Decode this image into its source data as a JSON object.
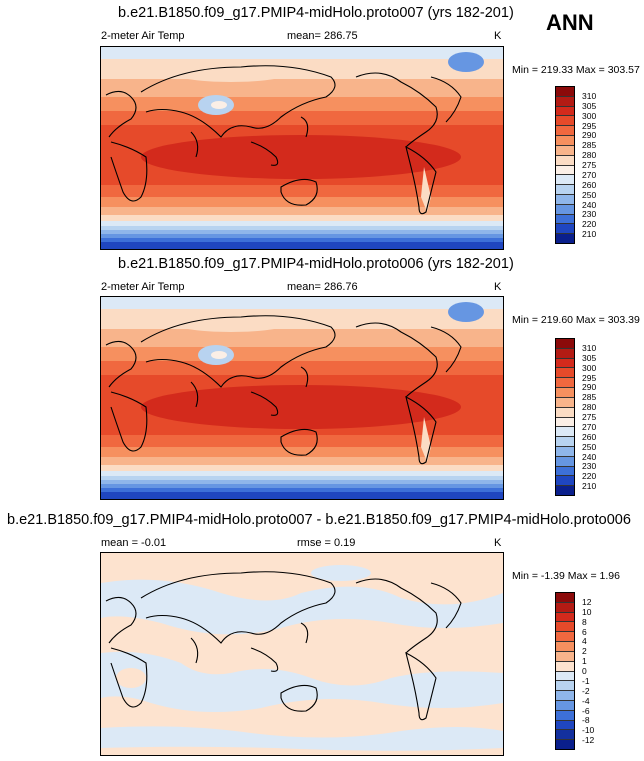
{
  "season": "ANN",
  "panels": [
    {
      "title": "b.e21.B1850.f09_g17.PMIP4-midHolo.proto007 (yrs 182-201)",
      "left_label": "2-meter Air Temp",
      "center_label": "mean= 286.75",
      "units": "K",
      "minmax": "Min = 219.33 Max = 303.57",
      "colorbar": {
        "levels": [
          "310",
          "305",
          "300",
          "295",
          "290",
          "285",
          "280",
          "275",
          "270",
          "260",
          "250",
          "240",
          "230",
          "220",
          "210"
        ],
        "colors": [
          "#8b0a0a",
          "#b31b14",
          "#d32a1c",
          "#e64a2a",
          "#f0683f",
          "#f6905f",
          "#f8b48b",
          "#fbdcc4",
          "#fbefe6",
          "#dce9f6",
          "#b8d3f0",
          "#8fb6ea",
          "#6696e2",
          "#3d70d8",
          "#1f46c0",
          "#0a1f8c"
        ]
      }
    },
    {
      "title": "b.e21.B1850.f09_g17.PMIP4-midHolo.proto006 (yrs 182-201)",
      "left_label": "2-meter Air Temp",
      "center_label": "mean= 286.76",
      "units": "K",
      "minmax": "Min = 219.60 Max = 303.39",
      "colorbar": {
        "levels": [
          "310",
          "305",
          "300",
          "295",
          "290",
          "285",
          "280",
          "275",
          "270",
          "260",
          "250",
          "240",
          "230",
          "220",
          "210"
        ],
        "colors": [
          "#8b0a0a",
          "#b31b14",
          "#d32a1c",
          "#e64a2a",
          "#f0683f",
          "#f6905f",
          "#f8b48b",
          "#fbdcc4",
          "#fbefe6",
          "#dce9f6",
          "#b8d3f0",
          "#8fb6ea",
          "#6696e2",
          "#3d70d8",
          "#1f46c0",
          "#0a1f8c"
        ]
      }
    },
    {
      "title": "b.e21.B1850.f09_g17.PMIP4-midHolo.proto007 - b.e21.B1850.f09_g17.PMIP4-midHolo.proto006",
      "left_label": "mean =  -0.01",
      "center_label": "rmse =   0.19",
      "units": "K",
      "minmax": "Min =  -1.39 Max =   1.96",
      "colorbar": {
        "levels": [
          "12",
          "10",
          "8",
          "6",
          "4",
          "2",
          "1",
          "0",
          "-1",
          "-2",
          "-4",
          "-6",
          "-8",
          "-10",
          "-12"
        ],
        "colors": [
          "#8b0a0a",
          "#b31b14",
          "#d32a1c",
          "#e64a2a",
          "#f0683f",
          "#f6905f",
          "#f8b48b",
          "#fde3cf",
          "#dce9f6",
          "#b8d3f0",
          "#8fb6ea",
          "#6696e2",
          "#3d70d8",
          "#1f46c0",
          "#13309e",
          "#0a1f8c"
        ]
      }
    }
  ]
}
